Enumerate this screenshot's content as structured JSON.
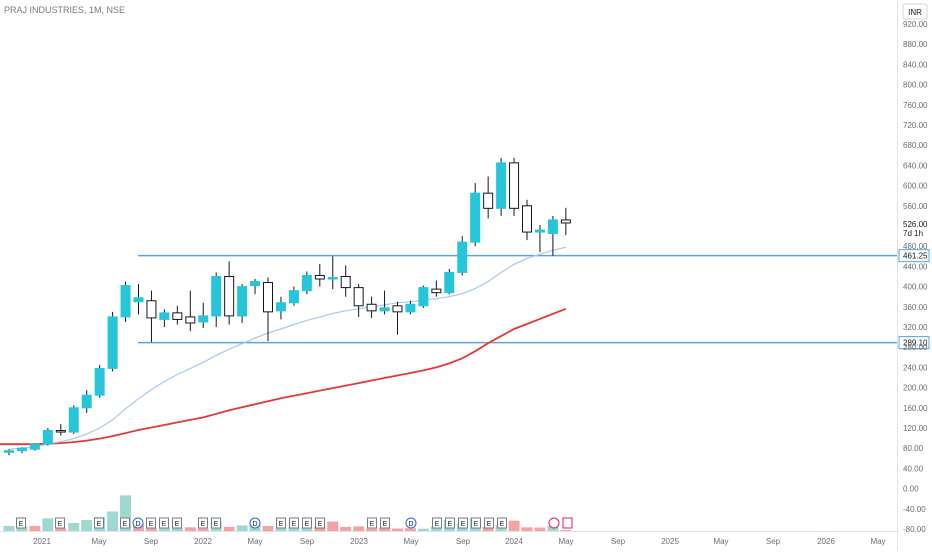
{
  "chart": {
    "title": "PRAJ INDUSTRIES, 1M, NSE",
    "currency": "INR",
    "price_label": "526.00",
    "countdown": "7d 1h"
  },
  "colors": {
    "up": "#26c6da",
    "down": "#ffffff",
    "candle_border": "#131722",
    "vol_up": "#9fd8d0",
    "vol_down": "#f4a3a3",
    "ma_short": "#a8c8ec",
    "ma_long": "#e53935",
    "hline": "#5ba3e0"
  },
  "chart_data": {
    "type": "candlestick",
    "y_ticks": [
      "920.00",
      "880.00",
      "840.00",
      "800.00",
      "760.00",
      "720.00",
      "680.00",
      "640.00",
      "600.00",
      "560.00",
      "480.00",
      "440.00",
      "400.00",
      "360.00",
      "320.00",
      "280.00",
      "240.00",
      "200.00",
      "160.00",
      "120.00",
      "80.00",
      "40.00",
      "0.00",
      "-40.00",
      "-80.00"
    ],
    "x_ticks": [
      "2021",
      "May",
      "Sep",
      "2022",
      "May",
      "Sep",
      "2023",
      "May",
      "Sep",
      "2024",
      "May",
      "Sep",
      "2025",
      "May",
      "Sep",
      "2026",
      "May"
    ],
    "ylim": [
      -80,
      940
    ],
    "horizontal_levels": [
      {
        "label": "461.25",
        "value": 461.25
      },
      {
        "label": "289.10",
        "value": 289.1
      }
    ],
    "candles": [
      {
        "date": "2020-09",
        "o": 72,
        "h": 78,
        "l": 66,
        "c": 75
      },
      {
        "date": "2020-10",
        "o": 75,
        "h": 82,
        "l": 70,
        "c": 80
      },
      {
        "date": "2020-11",
        "o": 78,
        "h": 90,
        "l": 75,
        "c": 88
      },
      {
        "date": "2020-12",
        "o": 88,
        "h": 120,
        "l": 85,
        "c": 115
      },
      {
        "date": "2021-01",
        "o": 115,
        "h": 128,
        "l": 105,
        "c": 112
      },
      {
        "date": "2021-02",
        "o": 112,
        "h": 165,
        "l": 108,
        "c": 160
      },
      {
        "date": "2021-03",
        "o": 160,
        "h": 195,
        "l": 150,
        "c": 185
      },
      {
        "date": "2021-04",
        "o": 185,
        "h": 245,
        "l": 180,
        "c": 238
      },
      {
        "date": "2021-05",
        "o": 238,
        "h": 350,
        "l": 232,
        "c": 340
      },
      {
        "date": "2021-06",
        "o": 340,
        "h": 410,
        "l": 330,
        "c": 402
      },
      {
        "date": "2021-07",
        "o": 370,
        "h": 405,
        "l": 345,
        "c": 378
      },
      {
        "date": "2021-08",
        "o": 372,
        "h": 392,
        "l": 290,
        "c": 338
      },
      {
        "date": "2021-09",
        "o": 335,
        "h": 355,
        "l": 320,
        "c": 348
      },
      {
        "date": "2021-10",
        "o": 348,
        "h": 362,
        "l": 325,
        "c": 335
      },
      {
        "date": "2021-11",
        "o": 340,
        "h": 392,
        "l": 312,
        "c": 328
      },
      {
        "date": "2021-12",
        "o": 330,
        "h": 368,
        "l": 318,
        "c": 342
      },
      {
        "date": "2022-01",
        "o": 342,
        "h": 428,
        "l": 320,
        "c": 420
      },
      {
        "date": "2022-02",
        "o": 420,
        "h": 450,
        "l": 325,
        "c": 342
      },
      {
        "date": "2022-03",
        "o": 342,
        "h": 405,
        "l": 328,
        "c": 400
      },
      {
        "date": "2022-04",
        "o": 402,
        "h": 415,
        "l": 385,
        "c": 410
      },
      {
        "date": "2022-05",
        "o": 408,
        "h": 418,
        "l": 292,
        "c": 350
      },
      {
        "date": "2022-06",
        "o": 352,
        "h": 380,
        "l": 335,
        "c": 368
      },
      {
        "date": "2022-07",
        "o": 368,
        "h": 400,
        "l": 362,
        "c": 392
      },
      {
        "date": "2022-08",
        "o": 392,
        "h": 430,
        "l": 385,
        "c": 422
      },
      {
        "date": "2022-09",
        "o": 422,
        "h": 445,
        "l": 400,
        "c": 415
      },
      {
        "date": "2022-10",
        "o": 415,
        "h": 460,
        "l": 395,
        "c": 418
      },
      {
        "date": "2022-11",
        "o": 420,
        "h": 442,
        "l": 380,
        "c": 398
      },
      {
        "date": "2022-12",
        "o": 398,
        "h": 405,
        "l": 340,
        "c": 362
      },
      {
        "date": "2023-01",
        "o": 365,
        "h": 380,
        "l": 338,
        "c": 352
      },
      {
        "date": "2023-02",
        "o": 352,
        "h": 392,
        "l": 345,
        "c": 358
      },
      {
        "date": "2023-03",
        "o": 362,
        "h": 370,
        "l": 305,
        "c": 350
      },
      {
        "date": "2023-04",
        "o": 350,
        "h": 372,
        "l": 345,
        "c": 365
      },
      {
        "date": "2023-05",
        "o": 362,
        "h": 402,
        "l": 358,
        "c": 398
      },
      {
        "date": "2023-06",
        "o": 395,
        "h": 412,
        "l": 380,
        "c": 388
      },
      {
        "date": "2023-07",
        "o": 388,
        "h": 435,
        "l": 385,
        "c": 428
      },
      {
        "date": "2023-08",
        "o": 428,
        "h": 500,
        "l": 422,
        "c": 488
      },
      {
        "date": "2023-09",
        "o": 488,
        "h": 605,
        "l": 480,
        "c": 585
      },
      {
        "date": "2023-10",
        "o": 585,
        "h": 618,
        "l": 535,
        "c": 555
      },
      {
        "date": "2023-11",
        "o": 555,
        "h": 655,
        "l": 540,
        "c": 645
      },
      {
        "date": "2023-12",
        "o": 645,
        "h": 655,
        "l": 540,
        "c": 555
      },
      {
        "date": "2024-01",
        "o": 560,
        "h": 572,
        "l": 492,
        "c": 508
      },
      {
        "date": "2024-02",
        "o": 508,
        "h": 522,
        "l": 468,
        "c": 512
      },
      {
        "date": "2024-03",
        "o": 505,
        "h": 540,
        "l": 461,
        "c": 532
      },
      {
        "date": "2024-04",
        "o": 532,
        "h": 556,
        "l": 502,
        "c": 526
      }
    ],
    "volume": [
      {
        "v": 22,
        "up": true
      },
      {
        "v": 20,
        "up": true
      },
      {
        "v": 22,
        "up": false
      },
      {
        "v": 55,
        "up": true
      },
      {
        "v": 12,
        "up": false
      },
      {
        "v": 35,
        "up": true
      },
      {
        "v": 48,
        "up": true
      },
      {
        "v": 60,
        "up": true
      },
      {
        "v": 85,
        "up": true
      },
      {
        "v": 155,
        "up": true
      },
      {
        "v": 30,
        "up": false
      },
      {
        "v": 12,
        "up": false
      },
      {
        "v": 15,
        "up": true
      },
      {
        "v": 14,
        "up": true
      },
      {
        "v": 16,
        "up": false
      },
      {
        "v": 10,
        "up": false
      },
      {
        "v": 40,
        "up": true
      },
      {
        "v": 18,
        "up": false
      },
      {
        "v": 24,
        "up": true
      },
      {
        "v": 31,
        "up": true
      },
      {
        "v": 22,
        "up": false
      },
      {
        "v": 14,
        "up": true
      },
      {
        "v": 17,
        "up": true
      },
      {
        "v": 16,
        "up": true
      },
      {
        "v": 21,
        "up": false
      },
      {
        "v": 41,
        "up": false
      },
      {
        "v": 18,
        "up": false
      },
      {
        "v": 20,
        "up": false
      },
      {
        "v": 10,
        "up": false
      },
      {
        "v": 15,
        "up": false
      },
      {
        "v": 11,
        "up": false
      },
      {
        "v": 12,
        "up": false
      },
      {
        "v": 10,
        "up": true
      },
      {
        "v": 20,
        "up": true
      },
      {
        "v": 48,
        "up": true
      },
      {
        "v": 33,
        "up": true
      },
      {
        "v": 56,
        "up": true
      },
      {
        "v": 18,
        "up": false
      },
      {
        "v": 24,
        "up": true
      },
      {
        "v": 45,
        "up": false
      },
      {
        "v": 16,
        "up": false
      },
      {
        "v": 15,
        "up": false
      },
      {
        "v": 22,
        "up": true
      },
      {
        "v": 4,
        "up": false
      }
    ],
    "ma_short": [
      78,
      80,
      83,
      88,
      93,
      99,
      108,
      120,
      136,
      158,
      178,
      196,
      212,
      226,
      238,
      250,
      264,
      276,
      287,
      298,
      308,
      316,
      325,
      333,
      340,
      347,
      352,
      356,
      360,
      364,
      368,
      370,
      373,
      376,
      380,
      386,
      396,
      410,
      428,
      444,
      456,
      464,
      472,
      478
    ],
    "ma_long": [
      88,
      88,
      88,
      89,
      90,
      92,
      95,
      99,
      104,
      110,
      116,
      121,
      126,
      131,
      136,
      141,
      148,
      155,
      161,
      167,
      173,
      179,
      184,
      189,
      194,
      199,
      204,
      209,
      214,
      219,
      224,
      229,
      234,
      240,
      248,
      258,
      272,
      288,
      302,
      316,
      326,
      336,
      346,
      356
    ],
    "event_markers": [
      "E",
      "E",
      "E",
      "E",
      "D",
      "E",
      "E",
      "E",
      "E",
      "E",
      "D",
      "E",
      "E",
      "E",
      "E",
      "E",
      "E",
      "D",
      "E",
      "E",
      "E",
      "E",
      "E",
      "E"
    ]
  }
}
